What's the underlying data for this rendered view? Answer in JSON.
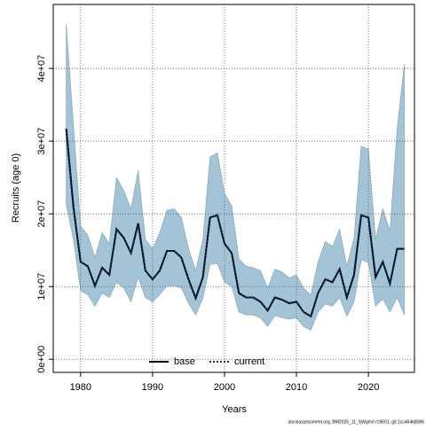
{
  "chart_data": {
    "type": "line",
    "ylabel": "Recruits (age 0)",
    "xlabel": "Years",
    "footer": "stockassessment.org, BM2025_11_SWgmrl r19601, git:1cc464b8086",
    "x": [
      1978,
      1979,
      1980,
      1981,
      1982,
      1983,
      1984,
      1985,
      1986,
      1987,
      1988,
      1989,
      1990,
      1991,
      1992,
      1993,
      1994,
      1995,
      1996,
      1997,
      1998,
      1999,
      2000,
      2001,
      2002,
      2003,
      2004,
      2005,
      2006,
      2007,
      2008,
      2009,
      2010,
      2011,
      2012,
      2013,
      2014,
      2015,
      2016,
      2017,
      2018,
      2019,
      2020,
      2021,
      2022,
      2023,
      2024,
      2025
    ],
    "series": [
      {
        "name": "base",
        "color": "#000000",
        "dash": "solid",
        "values": [
          31700000,
          21000000,
          13400000,
          12800000,
          10100000,
          12600000,
          11600000,
          17900000,
          16700000,
          14600000,
          18700000,
          12200000,
          11000000,
          12200000,
          14900000,
          14900000,
          14000000,
          11000000,
          8400000,
          11300000,
          19500000,
          19800000,
          15900000,
          14600000,
          9100000,
          8500000,
          8500000,
          7900000,
          6700000,
          8500000,
          8200000,
          7700000,
          7900000,
          6500000,
          5900000,
          9100000,
          11000000,
          10600000,
          12400000,
          8500000,
          11600000,
          19800000,
          19500000,
          11300000,
          13400000,
          10400000,
          15200000,
          15200000
        ]
      },
      {
        "name": "current",
        "color": "#0b2f57",
        "dash": "dotted",
        "values": [
          31700000,
          21000000,
          13400000,
          12800000,
          10100000,
          12600000,
          11600000,
          17900000,
          16700000,
          14600000,
          18700000,
          12200000,
          11000000,
          12200000,
          14900000,
          14900000,
          14000000,
          11000000,
          8400000,
          11300000,
          19500000,
          19800000,
          15900000,
          14600000,
          9100000,
          8500000,
          8500000,
          7900000,
          6700000,
          8500000,
          8200000,
          7700000,
          7900000,
          6500000,
          5900000,
          9100000,
          11000000,
          10600000,
          12400000,
          8500000,
          11600000,
          19800000,
          19500000,
          11300000,
          13400000,
          10400000,
          15200000,
          15200000
        ]
      }
    ],
    "band": {
      "color": "#a3c4d6",
      "upper": [
        46100000,
        32300000,
        18300000,
        17100000,
        14000000,
        17400000,
        15900000,
        25000000,
        23200000,
        20700000,
        26000000,
        16500000,
        15200000,
        17400000,
        20500000,
        20700000,
        19500000,
        15200000,
        12200000,
        16500000,
        27800000,
        28400000,
        22800000,
        21100000,
        13800000,
        12800000,
        12600000,
        12200000,
        9800000,
        12400000,
        12000000,
        11200000,
        11600000,
        9800000,
        8800000,
        13400000,
        16200000,
        15500000,
        17900000,
        12800000,
        16700000,
        29300000,
        28900000,
        16500000,
        20700000,
        17700000,
        31700000,
        40600000
      ],
      "lower": [
        21300000,
        16500000,
        9400000,
        8900000,
        7300000,
        9100000,
        8500000,
        10600000,
        9800000,
        7900000,
        11300000,
        8500000,
        7900000,
        8900000,
        10100000,
        10100000,
        9800000,
        7700000,
        6100000,
        8400000,
        13000000,
        13200000,
        10600000,
        10000000,
        6500000,
        6100000,
        6100000,
        5700000,
        4500000,
        6000000,
        5700000,
        5500000,
        5700000,
        4500000,
        4000000,
        6500000,
        7600000,
        7300000,
        8500000,
        5900000,
        7900000,
        13700000,
        13300000,
        7300000,
        8300000,
        6500000,
        8500000,
        6100000
      ]
    },
    "xlim": [
      1976.2,
      2026.4
    ],
    "xticks": [
      1980,
      1990,
      2000,
      2010,
      2020
    ],
    "ylim": [
      -1800000,
      48800000
    ],
    "yticks": [
      {
        "value": 0,
        "label": "0e+00"
      },
      {
        "value": 10000000,
        "label": "1e+07"
      },
      {
        "value": 20000000,
        "label": "2e+07"
      },
      {
        "value": 30000000,
        "label": "3e+07"
      },
      {
        "value": 40000000,
        "label": "4e+07"
      }
    ],
    "grid": true,
    "legend": "bottom"
  }
}
